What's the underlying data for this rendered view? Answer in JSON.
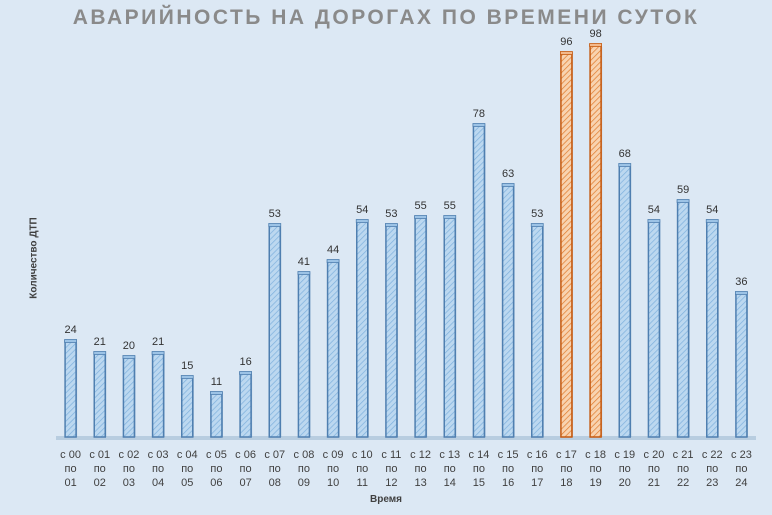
{
  "chart_data": {
    "type": "bar",
    "title": "АВАРИЙНОСТЬ НА ДОРОГАХ ПО ВРЕМЕНИ СУТОК",
    "xlabel": "Время",
    "ylabel": "Количество ДТП",
    "categories": [
      [
        "с 00",
        "по",
        "01"
      ],
      [
        "с 01",
        "по",
        "02"
      ],
      [
        "с 02",
        "по",
        "03"
      ],
      [
        "с 03",
        "по",
        "04"
      ],
      [
        "с 04",
        "по",
        "05"
      ],
      [
        "с 05",
        "по",
        "06"
      ],
      [
        "с 06",
        "по",
        "07"
      ],
      [
        "с 07",
        "по",
        "08"
      ],
      [
        "с 08",
        "по",
        "09"
      ],
      [
        "с 09",
        "по",
        "10"
      ],
      [
        "с 10",
        "по",
        "11"
      ],
      [
        "с 11",
        "по",
        "12"
      ],
      [
        "с 12",
        "по",
        "13"
      ],
      [
        "с 13",
        "по",
        "14"
      ],
      [
        "с 14",
        "по",
        "15"
      ],
      [
        "с 15",
        "по",
        "16"
      ],
      [
        "с 16",
        "по",
        "17"
      ],
      [
        "с 17",
        "по",
        "18"
      ],
      [
        "с 18",
        "по",
        "19"
      ],
      [
        "с 19",
        "по",
        "20"
      ],
      [
        "с 20",
        "по",
        "21"
      ],
      [
        "с 21",
        "по",
        "22"
      ],
      [
        "с 22",
        "по",
        "23"
      ],
      [
        "с 23",
        "по",
        "24"
      ]
    ],
    "values": [
      24,
      21,
      20,
      21,
      15,
      11,
      16,
      53,
      41,
      44,
      54,
      53,
      55,
      55,
      78,
      63,
      53,
      96,
      98,
      68,
      54,
      59,
      54,
      36
    ],
    "highlighted_indices": [
      17,
      18
    ],
    "ylim": [
      0,
      100
    ],
    "grid": false,
    "legend": "none",
    "colors": {
      "bar_fill": "#bcd8f0",
      "bar_hatch": "#5b9bd5",
      "bar_edge": "#4f7fb0",
      "highlight_fill": "#f6c9a0",
      "highlight_hatch": "#e07a2a",
      "highlight_edge": "#c55a11",
      "title": "#8a8a8a",
      "background": "#dce8f4"
    }
  }
}
